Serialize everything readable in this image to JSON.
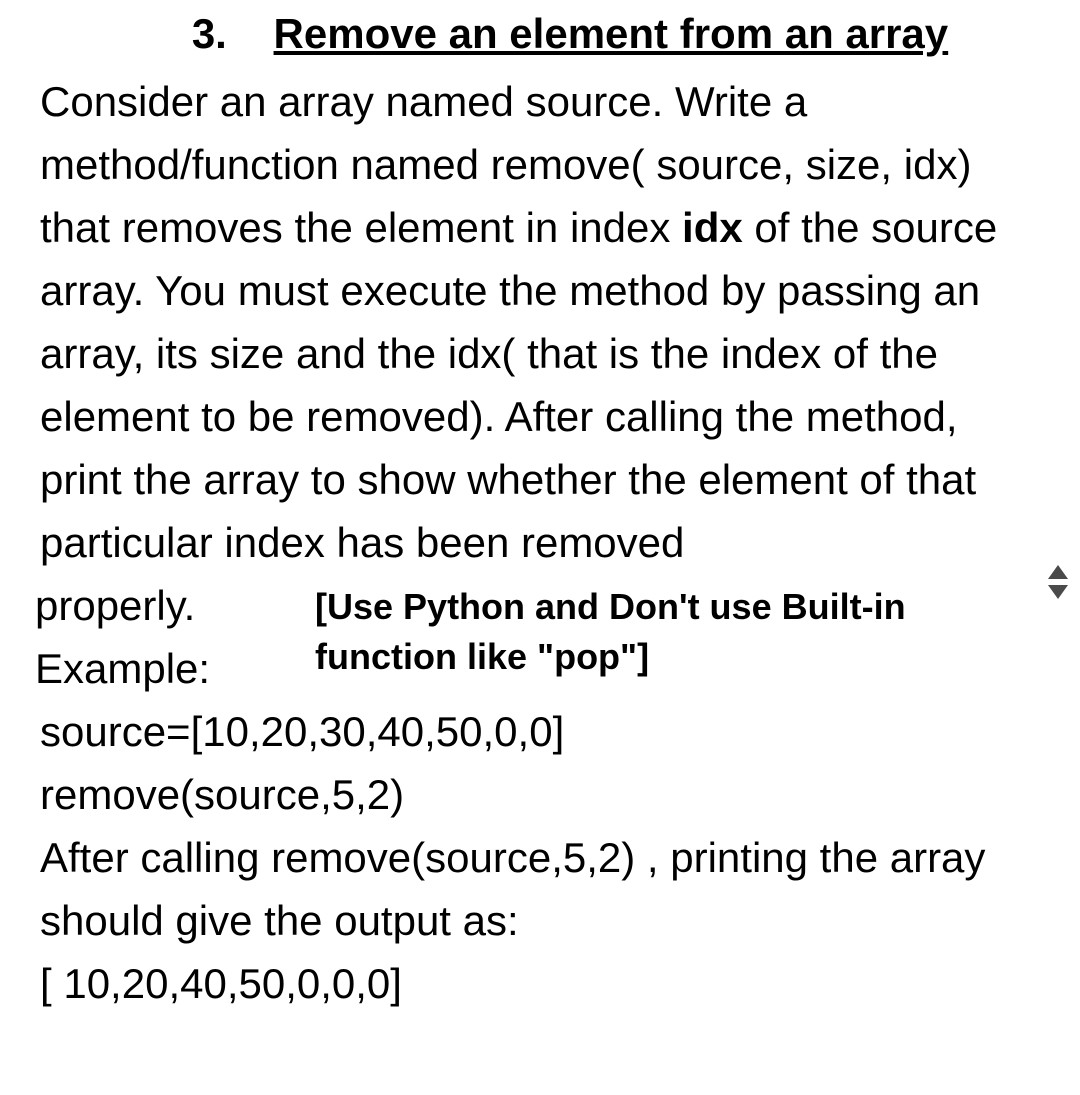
{
  "title": {
    "number": "3.",
    "text": "Remove an element from an array"
  },
  "body": {
    "para1_part1": "Consider an array named source. Write a method/function named remove( source, size, idx) that removes the element in index ",
    "idx_bold": "idx",
    "para1_part2": " of the source array. You must execute the method by passing an array, its size and the idx( that is the index of the element to be removed). After calling the method, print the array to show whether the element of that particular index has been removed"
  },
  "note": {
    "left_line1": "properly.",
    "left_line2": "Example:",
    "right_line1": "[Use Python and Don't use Built-in",
    "right_line2": "function like \"pop\"]"
  },
  "example": {
    "line1": "source=[10,20,30,40,50,0,0]",
    "line2": "remove(source,5,2)",
    "line3": "After calling remove(source,5,2) , printing the array should give the output as:",
    "line4": "[ 10,20,40,50,0,0,0]"
  },
  "styling": {
    "font_family": "Arial",
    "title_fontsize": 42,
    "title_weight": "bold",
    "body_fontsize": 42,
    "note_fontsize": 36,
    "note_weight": "bold",
    "line_height": 1.5,
    "text_color": "#000000",
    "background_color": "#ffffff",
    "arrow_color": "#4a4a4a"
  }
}
